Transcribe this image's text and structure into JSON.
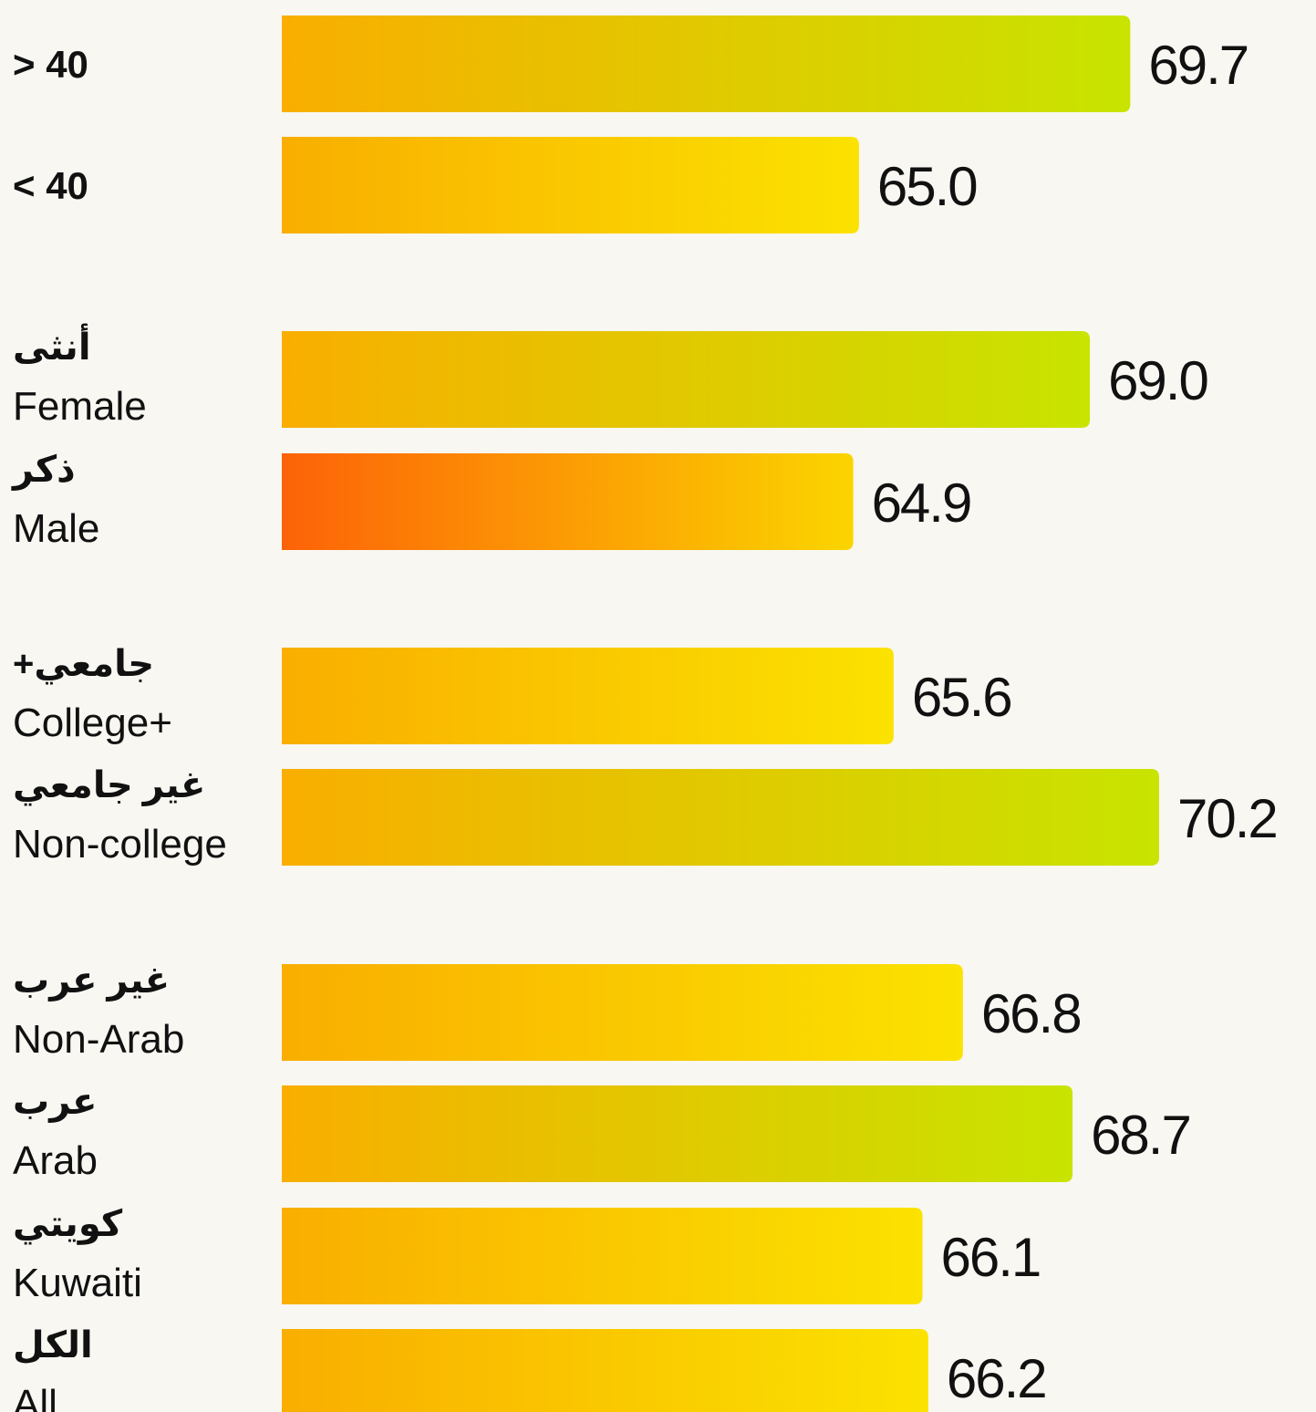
{
  "chart_data": {
    "type": "bar",
    "orientation": "horizontal",
    "categories": [
      "> 40",
      "< 40",
      "Female",
      "Male",
      "College+",
      "Non-college",
      "Non-Arab",
      "Arab",
      "Kuwaiti",
      "All"
    ],
    "categories_ar": [
      null,
      null,
      "أنثى",
      "ذكر",
      "جامعي+",
      "غير جامعي",
      "غير عرب",
      "عرب",
      "كويتي",
      "الكل"
    ],
    "values": [
      69.7,
      65.0,
      69.0,
      64.9,
      65.6,
      70.2,
      66.8,
      68.7,
      66.1,
      66.2
    ],
    "value_labels": [
      "69.7",
      "65.0",
      "69.0",
      "64.9",
      "65.6",
      "70.2",
      "66.8",
      "68.7",
      "66.1",
      "66.2"
    ],
    "colors": [
      [
        "#f9ae00",
        "#c8e400"
      ],
      [
        "#f9ae00",
        "#fbe200"
      ],
      [
        "#f9ae00",
        "#c8e400"
      ],
      [
        "#fc6208",
        "#fbd500"
      ],
      [
        "#f9ae00",
        "#fbe200"
      ],
      [
        "#f9ae00",
        "#c8e400"
      ],
      [
        "#f9ae00",
        "#fbe200"
      ],
      [
        "#f9ae00",
        "#c8e400"
      ],
      [
        "#f9ae00",
        "#fbe200"
      ],
      [
        "#f9ae00",
        "#fbe200"
      ]
    ],
    "xlim": [
      55,
      70.5
    ]
  }
}
